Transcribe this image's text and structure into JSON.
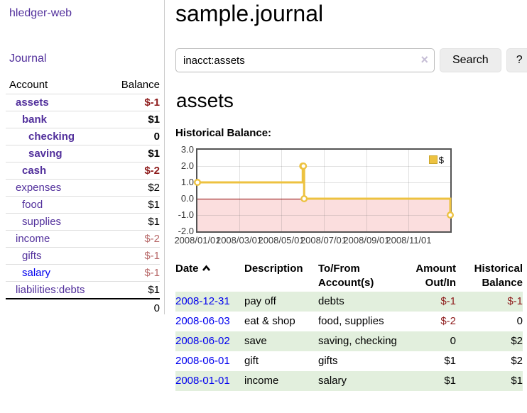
{
  "app": {
    "title": "hledger-web",
    "nav_journal": "Journal"
  },
  "colors": {
    "link_purple": "#52309c",
    "link_blue": "#0000ee",
    "negative": "#8e1c1c",
    "negative_soft": "#b86a6a",
    "row_green": "#e2efdd",
    "chart_gold": "#edc240",
    "zero_line": "#8b0000",
    "negative_region": "#fbdede"
  },
  "sidebar": {
    "header": {
      "account": "Account",
      "balance": "Balance"
    },
    "accounts": [
      {
        "name": "assets",
        "level": 0,
        "balance": "$-1",
        "bold": true,
        "neg": "strong"
      },
      {
        "name": "bank",
        "level": 1,
        "balance": "$1",
        "bold": true,
        "neg": "none"
      },
      {
        "name": "checking",
        "level": 2,
        "balance": "0",
        "bold": true,
        "neg": "none"
      },
      {
        "name": "saving",
        "level": 2,
        "balance": "$1",
        "bold": true,
        "neg": "none"
      },
      {
        "name": "cash",
        "level": 1,
        "balance": "$-2",
        "bold": true,
        "neg": "strong"
      },
      {
        "name": "expenses",
        "level": 0,
        "balance": "$2",
        "bold": false,
        "neg": "none"
      },
      {
        "name": "food",
        "level": 1,
        "balance": "$1",
        "bold": false,
        "neg": "none"
      },
      {
        "name": "supplies",
        "level": 1,
        "balance": "$1",
        "bold": false,
        "neg": "none"
      },
      {
        "name": "income",
        "level": 0,
        "balance": "$-2",
        "bold": false,
        "neg": "soft"
      },
      {
        "name": "gifts",
        "level": 1,
        "balance": "$-1",
        "bold": false,
        "neg": "soft"
      },
      {
        "name": "salary",
        "level": 1,
        "balance": "$-1",
        "bold": false,
        "neg": "soft",
        "link_color": "blue"
      },
      {
        "name": "liabilities:debts",
        "level": 0,
        "balance": "$1",
        "bold": false,
        "neg": "none"
      }
    ],
    "total": "0"
  },
  "header": {
    "title": "sample.journal"
  },
  "search": {
    "value": "inacct:assets",
    "clear_icon": "×",
    "button_label": "Search",
    "help_label": "?"
  },
  "account_page": {
    "title": "assets",
    "chart_label": "Historical Balance:"
  },
  "chart_data": {
    "type": "line",
    "step": true,
    "title": "Historical Balance",
    "series": [
      {
        "name": "$",
        "color": "#edc240",
        "points": [
          [
            "2008-01-01",
            1
          ],
          [
            "2008-06-01",
            2
          ],
          [
            "2008-06-02",
            2
          ],
          [
            "2008-06-03",
            0
          ],
          [
            "2008-12-31",
            -1
          ]
        ]
      }
    ],
    "x_ticks": [
      "2008/01/01",
      "2008/03/01",
      "2008/05/01",
      "2008/07/01",
      "2008/09/01",
      "2008/11/01"
    ],
    "y_ticks": [
      3.0,
      2.0,
      1.0,
      0.0,
      -1.0,
      -2.0
    ],
    "xlim": [
      "2008-01-01",
      "2008-12-31"
    ],
    "ylim": [
      -2,
      3
    ],
    "grid": true,
    "legend_position": "top-right",
    "legend": [
      {
        "label": "$",
        "color": "#edc240"
      }
    ]
  },
  "register": {
    "columns": [
      {
        "label": "Date",
        "sorted": "asc"
      },
      {
        "label": "Description"
      },
      {
        "label": "To/From Account(s)"
      },
      {
        "label": "Amount Out/In"
      },
      {
        "label": "Historical Balance"
      }
    ],
    "rows": [
      {
        "date": "2008-12-31",
        "description": "pay off",
        "accounts": "debts",
        "amount": "$-1",
        "amount_negative": true,
        "balance": "$-1",
        "balance_negative": true
      },
      {
        "date": "2008-06-03",
        "description": "eat & shop",
        "accounts": "food, supplies",
        "amount": "$-2",
        "amount_negative": true,
        "balance": "0",
        "balance_negative": false
      },
      {
        "date": "2008-06-02",
        "description": "save",
        "accounts": "saving, checking",
        "amount": "0",
        "amount_negative": false,
        "balance": "$2",
        "balance_negative": false
      },
      {
        "date": "2008-06-01",
        "description": "gift",
        "accounts": "gifts",
        "amount": "$1",
        "amount_negative": false,
        "balance": "$2",
        "balance_negative": false
      },
      {
        "date": "2008-01-01",
        "description": "income",
        "accounts": "salary",
        "amount": "$1",
        "amount_negative": false,
        "balance": "$1",
        "balance_negative": false
      }
    ]
  }
}
